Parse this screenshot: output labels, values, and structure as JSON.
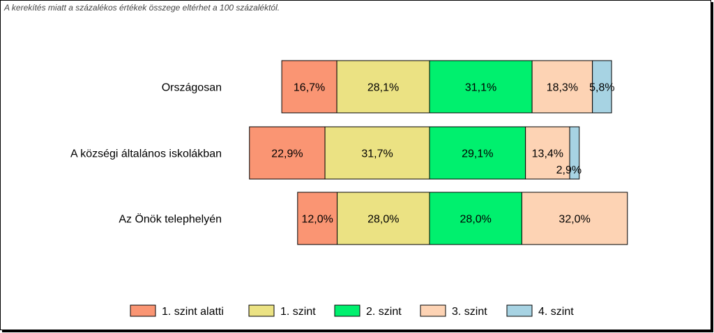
{
  "note": "A kerekítés miatt a  százalékos értékek összege eltérhet a 100 százaléktól.",
  "chart_data": {
    "type": "bar",
    "orientation": "horizontal",
    "stacked": true,
    "categories": [
      "Országosan",
      "A községi általános iskolákban",
      "Az Önök telephelyén"
    ],
    "series": [
      {
        "name": "1. szint alatti",
        "color": "#fa9573",
        "values": [
          16.7,
          22.9,
          12.0
        ],
        "labels": [
          "16,7%",
          "22,9%",
          "12,0%"
        ]
      },
      {
        "name": "1. szint",
        "color": "#ebe283",
        "values": [
          28.1,
          31.7,
          28.0
        ],
        "labels": [
          "28,1%",
          "31,7%",
          "28,0%"
        ]
      },
      {
        "name": "2. szint",
        "color": "#00f06e",
        "values": [
          31.1,
          29.1,
          28.0
        ],
        "labels": [
          "31,1%",
          "29,1%",
          "28,0%"
        ]
      },
      {
        "name": "3. szint",
        "color": "#fdd3b4",
        "values": [
          18.3,
          13.4,
          32.0
        ],
        "labels": [
          "18,3%",
          "13,4%",
          "32,0%"
        ]
      },
      {
        "name": "4. szint",
        "color": "#a7d3e3",
        "values": [
          5.8,
          2.9,
          0
        ],
        "labels": [
          "5,8%",
          "2,9%",
          ""
        ]
      }
    ],
    "anchor_series": "2. szint",
    "grid": false,
    "legend_position": "bottom"
  }
}
